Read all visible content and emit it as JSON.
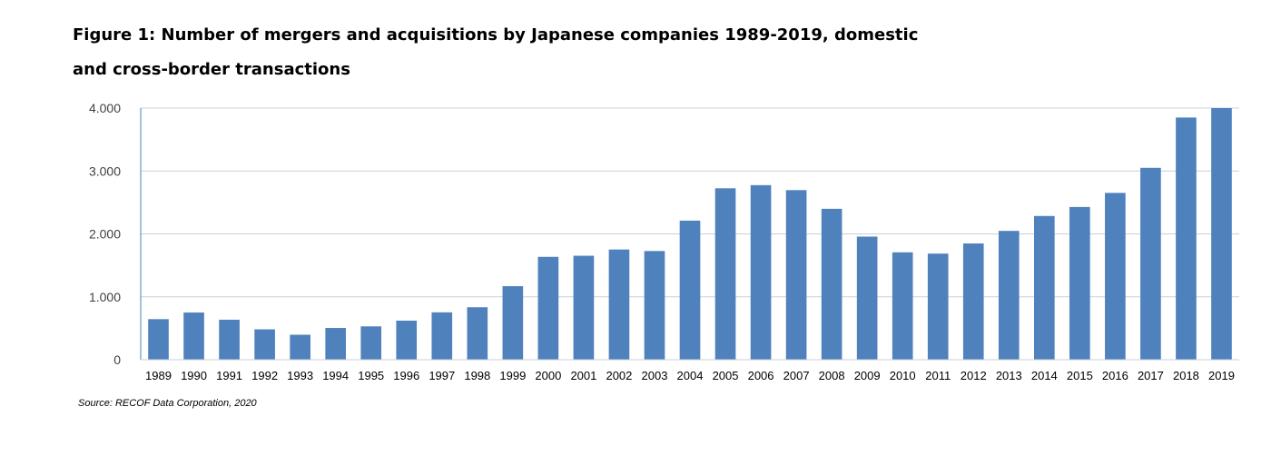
{
  "title": "Figure 1: Number of mergers and acquisitions by Japanese companies 1989-2019, domestic and cross-border transactions",
  "source": "Source: RECOF Data Corporation, 2020",
  "chart_data": {
    "type": "bar",
    "title": "Figure 1: Number of mergers and acquisitions by Japanese companies 1989-2019, domestic and cross-border transactions",
    "xlabel": "",
    "ylabel": "",
    "categories": [
      "1989",
      "1990",
      "1991",
      "1992",
      "1993",
      "1994",
      "1995",
      "1996",
      "1997",
      "1998",
      "1999",
      "2000",
      "2001",
      "2002",
      "2003",
      "2004",
      "2005",
      "2006",
      "2007",
      "2008",
      "2009",
      "2010",
      "2011",
      "2012",
      "2013",
      "2014",
      "2015",
      "2016",
      "2017",
      "2018",
      "2019"
    ],
    "values": [
      645,
      750,
      636,
      483,
      397,
      505,
      530,
      621,
      753,
      834,
      1169,
      1635,
      1653,
      1752,
      1728,
      2211,
      2725,
      2775,
      2696,
      2399,
      1957,
      1707,
      1687,
      1848,
      2048,
      2285,
      2428,
      2652,
      3050,
      3850,
      4000
    ],
    "ylim": [
      0,
      4000
    ],
    "yticks": [
      0,
      1000,
      2000,
      3000,
      4000
    ],
    "ytick_labels": [
      "0",
      "1.000",
      "2.000",
      "3.000",
      "4.000"
    ],
    "grid": "horizontal",
    "legend": "none",
    "bar_color": "#4f81bd",
    "grid_color": "#c9d0da",
    "axis_color": "#4f81bd"
  }
}
